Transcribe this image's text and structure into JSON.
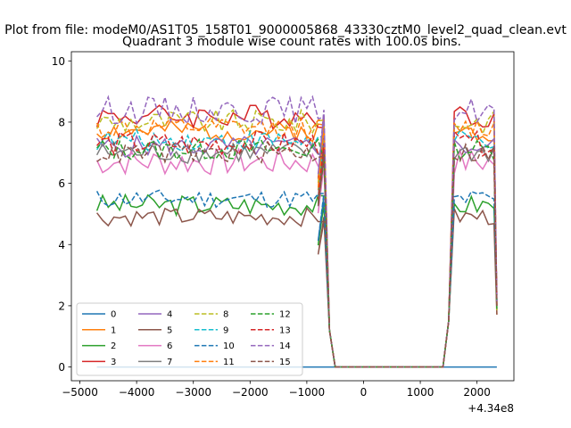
{
  "chart_data": {
    "type": "line",
    "suptitle": "Plot from file: modeM0/AS1T05_158T01_9000005868_43330cztM0_level2_quad_clean.evt",
    "title": "Quadrant 3 module wise count rates with 100.0s bins.",
    "xlabel": "",
    "ylabel": "",
    "x_offset_label": "+4.34e8",
    "xlim": [
      -5150,
      2650
    ],
    "ylim": [
      -0.45,
      10.3
    ],
    "x_ticks": [
      -5000,
      -4000,
      -3000,
      -2000,
      -1000,
      0,
      1000,
      2000
    ],
    "x_tick_labels": [
      "−5000",
      "−4000",
      "−3000",
      "−2000",
      "−1000",
      "0",
      "1000",
      "2000"
    ],
    "y_ticks": [
      0,
      2,
      4,
      6,
      8,
      10
    ],
    "y_tick_labels": [
      "0",
      "2",
      "4",
      "6",
      "8",
      "10"
    ],
    "grid": false,
    "legend_placement": "lower-left",
    "legend_columns": 4,
    "series": [
      {
        "name": "0",
        "color": "#1f77b4",
        "dash": "solid",
        "base": 0.0,
        "amp": 0.0,
        "seed": 1,
        "zero": true
      },
      {
        "name": "1",
        "color": "#ff7f0e",
        "dash": "solid",
        "base": 7.7,
        "amp": 0.35,
        "seed": 2
      },
      {
        "name": "2",
        "color": "#2ca02c",
        "dash": "solid",
        "base": 5.3,
        "amp": 0.35,
        "seed": 3
      },
      {
        "name": "3",
        "color": "#d62728",
        "dash": "solid",
        "base": 8.2,
        "amp": 0.4,
        "seed": 4
      },
      {
        "name": "4",
        "color": "#9467bd",
        "dash": "solid",
        "base": 7.2,
        "amp": 0.35,
        "seed": 5
      },
      {
        "name": "5",
        "color": "#8c564b",
        "dash": "solid",
        "base": 4.9,
        "amp": 0.3,
        "seed": 6
      },
      {
        "name": "6",
        "color": "#e377c2",
        "dash": "solid",
        "base": 6.7,
        "amp": 0.45,
        "seed": 7
      },
      {
        "name": "7",
        "color": "#7f7f7f",
        "dash": "solid",
        "base": 7.0,
        "amp": 0.35,
        "seed": 8
      },
      {
        "name": "8",
        "color": "#bcbd22",
        "dash": "dashed",
        "base": 8.0,
        "amp": 0.4,
        "seed": 9
      },
      {
        "name": "9",
        "color": "#17becf",
        "dash": "dashed",
        "base": 7.4,
        "amp": 0.35,
        "seed": 10
      },
      {
        "name": "10",
        "color": "#1f77b4",
        "dash": "dashed",
        "base": 5.5,
        "amp": 0.3,
        "seed": 11
      },
      {
        "name": "11",
        "color": "#ff7f0e",
        "dash": "dashed",
        "base": 7.8,
        "amp": 0.35,
        "seed": 12
      },
      {
        "name": "12",
        "color": "#2ca02c",
        "dash": "dashed",
        "base": 7.1,
        "amp": 0.35,
        "seed": 13
      },
      {
        "name": "13",
        "color": "#d62728",
        "dash": "dashed",
        "base": 7.3,
        "amp": 0.4,
        "seed": 14
      },
      {
        "name": "14",
        "color": "#9467bd",
        "dash": "dashed",
        "base": 8.4,
        "amp": 0.45,
        "seed": 15
      },
      {
        "name": "15",
        "color": "#8c564b",
        "dash": "dashed",
        "base": 7.0,
        "amp": 0.35,
        "seed": 16
      }
    ],
    "segments": {
      "first": {
        "x_start": -4700,
        "x_end": -700,
        "step": 100
      },
      "drop": [
        [
          -600,
          1.2
        ],
        [
          -500,
          0.0
        ]
      ],
      "gap": {
        "x_start": -500,
        "x_end": 1400
      },
      "second": {
        "x_start": 1600,
        "x_end": 2300,
        "step": 100
      },
      "rise": [
        [
          1500,
          1.5
        ],
        [
          1400,
          0.0
        ]
      ],
      "end_value": 2.0,
      "end_x": 2350
    }
  }
}
